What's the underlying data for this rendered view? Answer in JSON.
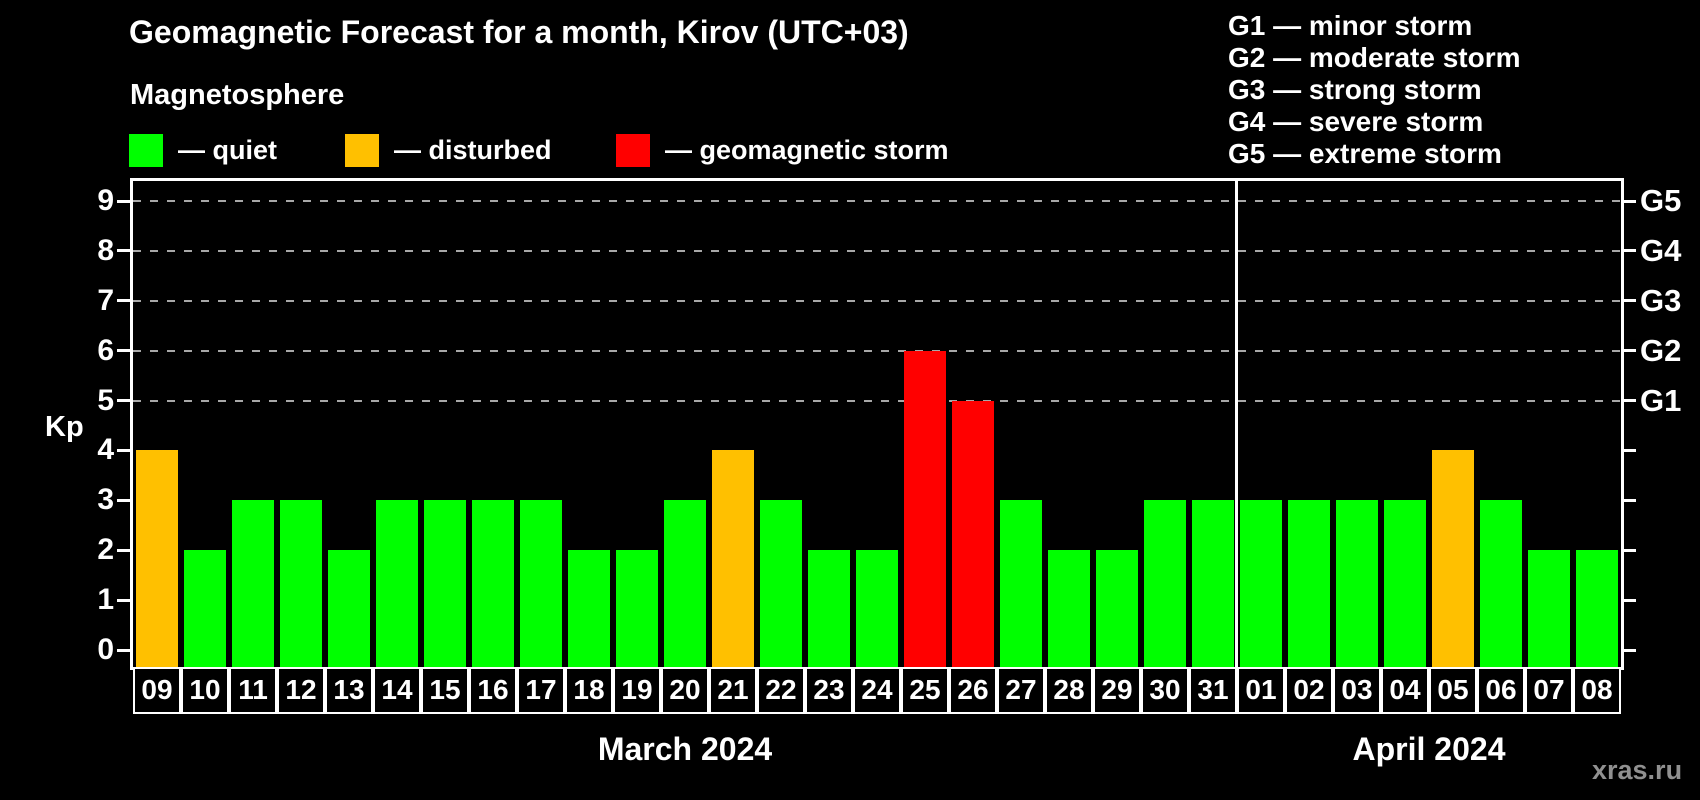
{
  "title": "Geomagnetic Forecast for a month, Kirov (UTC+03)",
  "subtitle": "Magnetosphere",
  "severity_legend": [
    {
      "name": "quiet",
      "label": "— quiet",
      "color": "#00ff00"
    },
    {
      "name": "disturbed",
      "label": "— disturbed",
      "color": "#ffc000"
    },
    {
      "name": "storm",
      "label": "— geomagnetic storm",
      "color": "#ff0000"
    }
  ],
  "g_scale_legend": [
    "G1 — minor storm",
    "G2 — moderate storm",
    "G3 — strong storm",
    "G4 — severe storm",
    "G5 — extreme storm"
  ],
  "watermark": "xras.ru",
  "chart_data": {
    "type": "bar",
    "title": "Geomagnetic Forecast for a month, Kirov (UTC+03)",
    "ylabel": "Kp",
    "ylim": [
      0,
      9
    ],
    "y_ticks": [
      0,
      1,
      2,
      3,
      4,
      5,
      6,
      7,
      8,
      9
    ],
    "gridline_levels": [
      5,
      6,
      7,
      8,
      9
    ],
    "grid_style": "dashed horizontal lines at G-storm levels only",
    "legend_position": "top-left",
    "right_axis_labels": [
      {
        "level": 5,
        "label": "G1"
      },
      {
        "level": 6,
        "label": "G2"
      },
      {
        "level": 7,
        "label": "G3"
      },
      {
        "level": 8,
        "label": "G4"
      },
      {
        "level": 9,
        "label": "G5"
      }
    ],
    "categories": [
      "09",
      "10",
      "11",
      "12",
      "13",
      "14",
      "15",
      "16",
      "17",
      "18",
      "19",
      "20",
      "21",
      "22",
      "23",
      "24",
      "25",
      "26",
      "27",
      "28",
      "29",
      "30",
      "31",
      "01",
      "02",
      "03",
      "04",
      "05",
      "06",
      "07",
      "08"
    ],
    "values": [
      4,
      2,
      3,
      3,
      2,
      3,
      3,
      3,
      3,
      2,
      2,
      3,
      4,
      3,
      2,
      2,
      6,
      5,
      3,
      2,
      2,
      3,
      3,
      3,
      3,
      3,
      3,
      4,
      3,
      2,
      2
    ],
    "severity_colors": {
      "quiet": "#00ff00",
      "disturbed": "#ffc000",
      "storm": "#ff0000"
    },
    "thresholds": {
      "disturbed_min": 4,
      "storm_min": 5
    },
    "months": [
      {
        "label": "March 2024",
        "days": 23
      },
      {
        "label": "April 2024",
        "days": 8
      }
    ]
  }
}
